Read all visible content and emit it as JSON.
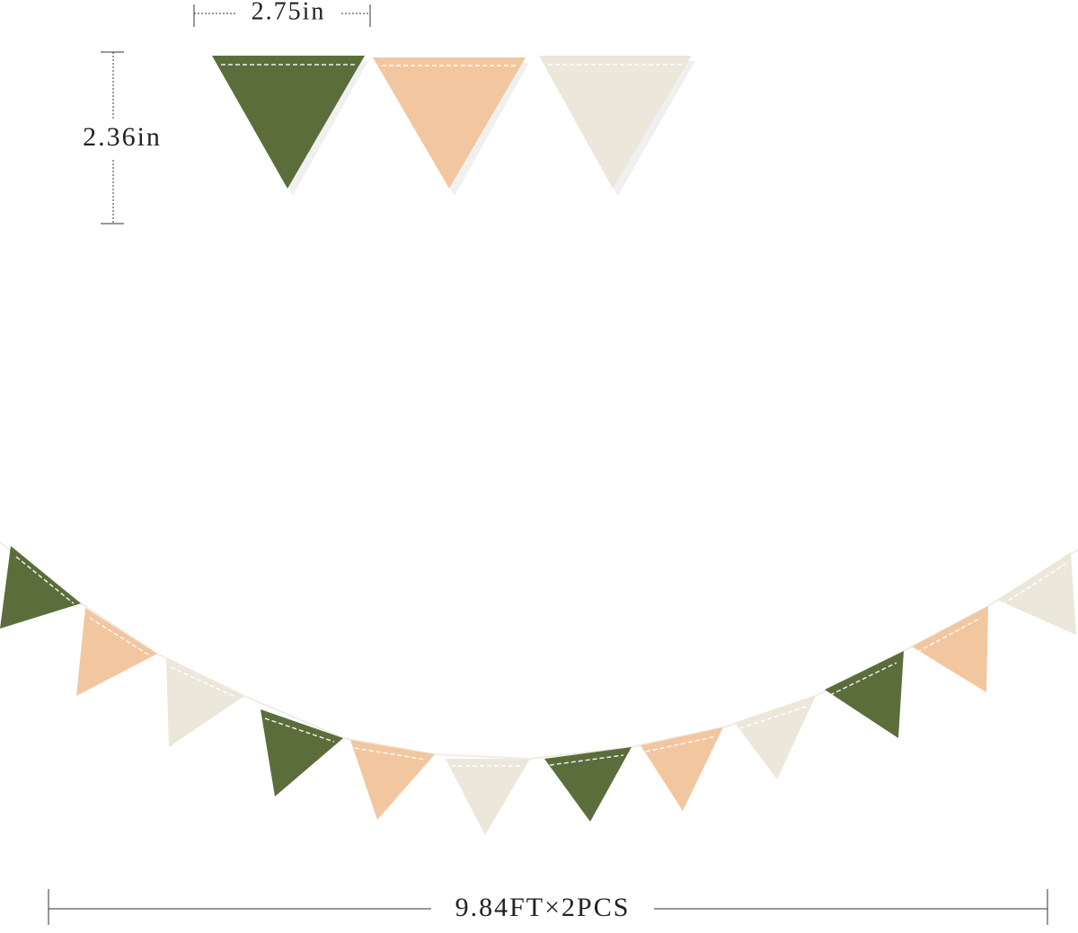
{
  "dimensions": {
    "width": "2.75in",
    "height": "2.36in",
    "length": "9.84FT×2PCS"
  }
}
